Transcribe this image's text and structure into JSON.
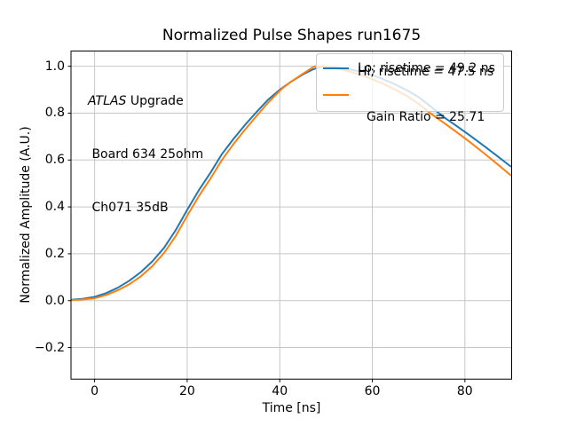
{
  "figure": {
    "annotation": {
      "atlas": "ATLAS",
      "line1_rest": " Upgrade",
      "line2": " Board 634 25ohm",
      "line3": " Ch071 35dB"
    },
    "legend": {
      "lo_label": "Lo; risetime = 49.2 ns",
      "hi_label_line1": "Hi; risetime = 47.5 ns",
      "hi_label_line2": "Gain Ratio = 25.71"
    }
  },
  "chart_data": {
    "type": "line",
    "title": "Normalized Pulse Shapes run1675",
    "xlabel": "Time [ns]",
    "ylabel": "Normalized Amplitude (A.U.)",
    "xlim": [
      -5.1,
      90.1
    ],
    "ylim": [
      -0.335,
      1.065
    ],
    "xticks": [
      0,
      20,
      40,
      60,
      80
    ],
    "xtick_labels": [
      "0",
      "20",
      "40",
      "60",
      "80"
    ],
    "yticks": [
      1.0,
      0.8,
      0.6,
      0.4,
      0.2,
      0.0,
      -0.2
    ],
    "ytick_labels": [
      "1.0",
      "0.8",
      "0.6",
      "0.4",
      "0.2",
      "0.0",
      "−0.2"
    ],
    "grid": true,
    "grid_color": "#c6c6c6",
    "legend_location": "upper right",
    "annotation_text": "ATLAS Upgrade\n Board 634 25ohm\n Ch071 35dB",
    "series": [
      {
        "name": "Lo; risetime = 49.2 ns",
        "risetime_ns": 49.2,
        "color": "#1f77b4",
        "points": [
          [
            -5,
            0.004
          ],
          [
            -2.5,
            0.008
          ],
          [
            0,
            0.016
          ],
          [
            2.5,
            0.032
          ],
          [
            5,
            0.055
          ],
          [
            7.5,
            0.085
          ],
          [
            10,
            0.122
          ],
          [
            12.5,
            0.168
          ],
          [
            15,
            0.225
          ],
          [
            17.5,
            0.3
          ],
          [
            20,
            0.387
          ],
          [
            22.5,
            0.47
          ],
          [
            25,
            0.545
          ],
          [
            27.5,
            0.625
          ],
          [
            30,
            0.69
          ],
          [
            32.5,
            0.75
          ],
          [
            35,
            0.805
          ],
          [
            37.5,
            0.858
          ],
          [
            40,
            0.9
          ],
          [
            42.5,
            0.935
          ],
          [
            45,
            0.965
          ],
          [
            47,
            0.985
          ],
          [
            49.2,
            1.0
          ],
          [
            51,
            0.998
          ],
          [
            53,
            0.993
          ],
          [
            55,
            0.987
          ],
          [
            57.5,
            0.978
          ],
          [
            60,
            0.962
          ],
          [
            62.5,
            0.944
          ],
          [
            65,
            0.922
          ],
          [
            67.5,
            0.898
          ],
          [
            70,
            0.868
          ],
          [
            72.5,
            0.83
          ],
          [
            75.5,
            0.782
          ],
          [
            78,
            0.748
          ],
          [
            81,
            0.706
          ],
          [
            84,
            0.662
          ],
          [
            87,
            0.617
          ],
          [
            90,
            0.571
          ]
        ]
      },
      {
        "name": "Hi; risetime = 47.5 ns\nGain Ratio = 25.71",
        "risetime_ns": 47.5,
        "gain_ratio": 25.71,
        "color": "#ff7f0e",
        "points": [
          [
            -5,
            0.002
          ],
          [
            -2.5,
            0.005
          ],
          [
            0,
            0.01
          ],
          [
            2.5,
            0.024
          ],
          [
            5,
            0.044
          ],
          [
            7.5,
            0.07
          ],
          [
            10,
            0.104
          ],
          [
            12.5,
            0.148
          ],
          [
            15,
            0.203
          ],
          [
            17.5,
            0.275
          ],
          [
            20,
            0.362
          ],
          [
            22.5,
            0.445
          ],
          [
            25,
            0.52
          ],
          [
            27.5,
            0.6
          ],
          [
            30,
            0.668
          ],
          [
            32.5,
            0.73
          ],
          [
            35,
            0.788
          ],
          [
            37.5,
            0.845
          ],
          [
            39.5,
            0.885
          ],
          [
            40.5,
            0.905
          ],
          [
            42.5,
            0.935
          ],
          [
            45,
            0.968
          ],
          [
            47.5,
            1.0
          ],
          [
            49,
            0.999
          ],
          [
            51,
            0.995
          ],
          [
            53,
            0.988
          ],
          [
            55,
            0.978
          ],
          [
            57.5,
            0.963
          ],
          [
            60,
            0.945
          ],
          [
            62.5,
            0.924
          ],
          [
            65,
            0.9
          ],
          [
            67.5,
            0.873
          ],
          [
            70,
            0.84
          ],
          [
            72.5,
            0.8
          ],
          [
            75,
            0.765
          ],
          [
            78,
            0.722
          ],
          [
            81,
            0.678
          ],
          [
            84,
            0.631
          ],
          [
            87,
            0.583
          ],
          [
            90,
            0.533
          ]
        ]
      }
    ]
  }
}
